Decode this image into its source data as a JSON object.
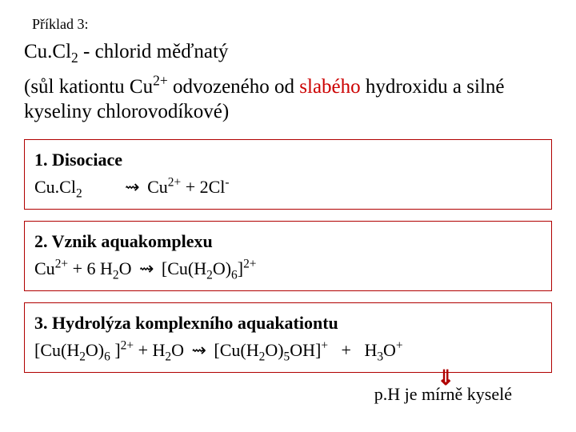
{
  "exampleLabel": "Příklad 3:",
  "title": {
    "formula_pre": "Cu.Cl",
    "formula_sub": "2",
    "name": " - chlorid měďnatý"
  },
  "desc": {
    "pre": "(sůl kationtu Cu",
    "sup1": "2+",
    "mid1": " odvozeného od ",
    "red": "slabého",
    "mid2": " hydroxidu  a silné kyseliny chlorovodíkové)"
  },
  "box1": {
    "heading": "1. Disociace",
    "lhs_pre": "Cu.Cl",
    "lhs_sub": "2",
    "gap": "         ",
    "arrow": "⇝",
    "rhs_a": "  Cu",
    "rhs_a_sup": "2+",
    "rhs_b": "  +  2Cl",
    "rhs_b_sup": "-"
  },
  "box2": {
    "heading": "2. Vznik aquakomplexu",
    "lhs_pre": "Cu",
    "lhs_sup": "2+",
    "lhs_mid": "  + 6 H",
    "lhs_h_sub": "2",
    "lhs_o": "O ",
    "arrow": "⇝",
    "rhs_pre": " [Cu(H",
    "rhs_sub1": "2",
    "rhs_o": "O)",
    "rhs_sub2": "6",
    "rhs_close": "]",
    "rhs_sup": "2+"
  },
  "box3": {
    "heading": "3. Hydrolýza komplexního aquakationtu",
    "l_pre": "[Cu(H",
    "l_sub1": "2",
    "l_o": "O)",
    "l_sub2": "6",
    "l_close": " ]",
    "l_sup": "2+",
    "l_plus": " +  H",
    "l_hsub": "2",
    "l_o2": "O ",
    "arrow": "⇝",
    "r_pre": "  [Cu(H",
    "r_sub1": "2",
    "r_o": "O)",
    "r_sub2": "5",
    "r_oh": "OH]",
    "r_sup": "+",
    "r_plus": "   +   H",
    "r_hsub": "3",
    "r_o2": "O",
    "r_sup2": "+"
  },
  "footer": "p.H je mírně kyselé",
  "downMark": "⇓",
  "colors": {
    "boxBorder": "#b00000",
    "redText": "#cc0000",
    "text": "#000000",
    "bg": "#ffffff"
  }
}
